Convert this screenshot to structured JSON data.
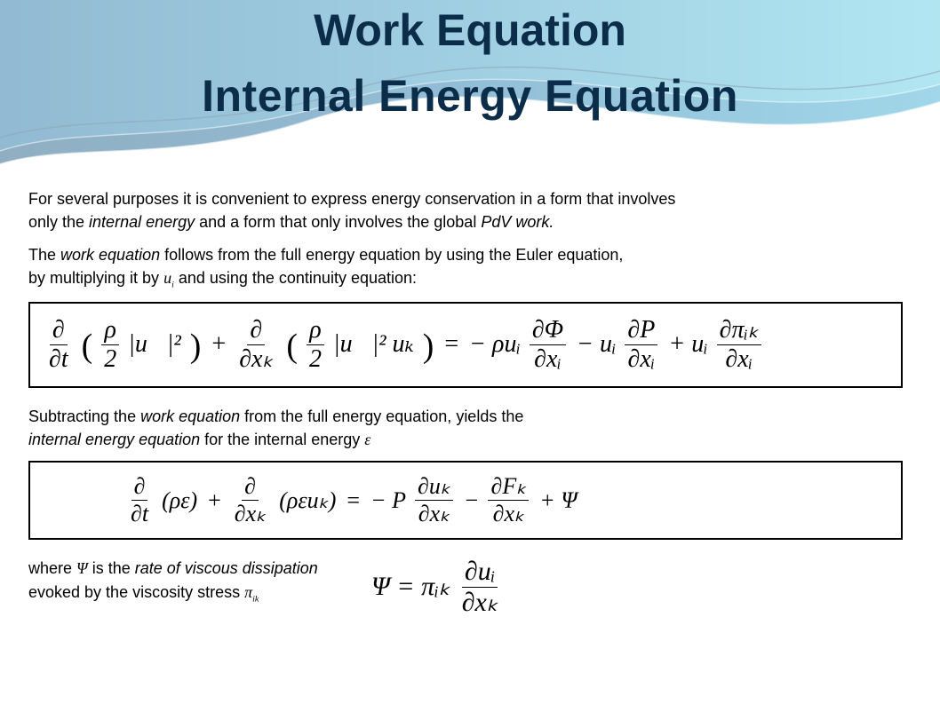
{
  "banner": {
    "title1": "Work Equation",
    "title2": "Internal Energy  Equation",
    "colors": {
      "title_color": "#0b2d4a",
      "wave_dark": "#0a4d77",
      "wave_mid": "#0f6ea6",
      "wave_light": "#2fa6cf",
      "wave_bright": "#5bd0e5",
      "wave_stroke": "#0c3b5c"
    },
    "title_fontsize": 50
  },
  "body": {
    "p1a": "For  several  purposes it is convenient to express energy conservation in a form that involves",
    "p1b_pre": "only the ",
    "p1b_em1": "internal energy",
    "p1b_mid": " and a form that only involves the global ",
    "p1b_em2": "PdV work.",
    "p2a_pre": "The ",
    "p2a_em": "work equation",
    "p2a_post": " follows from the full energy equation by using the Euler equation,",
    "p2b_pre": "by multiplying it by ",
    "p2b_sym": "u",
    "p2b_sub": "i",
    "p2b_post": " and using the continuity equation:",
    "p3a_pre": "Subtracting the ",
    "p3a_em": "work equation",
    "p3a_post": " from the full energy equation, yields the",
    "p3b_em": "internal energy equation",
    "p3b_post": "  for the internal energy ",
    "p3b_sym": "ε",
    "p4a_pre": "where ",
    "p4a_sym": "Ψ",
    "p4a_mid": " is the ",
    "p4a_em": "rate of viscous dissipation",
    "p4b_pre": "evoked by the viscosity stress  ",
    "p4b_sym": "π",
    "p4b_sub": "ik",
    "fontsize": 18
  },
  "eq1": {
    "t1_num": "∂",
    "t1_den": "∂t",
    "t1_inner_num": "ρ",
    "t1_inner_den": "2",
    "t1_inner_tail": "|u&#8407;|²",
    "plus": "+",
    "t2_num": "∂",
    "t2_den": "∂xₖ",
    "t2_inner_num": "ρ",
    "t2_inner_den": "2",
    "t2_inner_tail": "|u&#8407;|² uₖ",
    "eq": "=",
    "r1_pre": "− ρuᵢ",
    "r1_num": "∂Φ",
    "r1_den": "∂xᵢ",
    "r2_pre": "− uᵢ",
    "r2_num": "∂P",
    "r2_den": "∂xᵢ",
    "r3_pre": "+ uᵢ",
    "r3_num": "∂πᵢₖ",
    "r3_den": "∂xᵢ"
  },
  "eq2": {
    "t1_num": "∂",
    "t1_den": "∂t",
    "t1_par": "(ρε)",
    "t2_num": "∂",
    "t2_den": "∂xₖ",
    "t2_par": "(ρεuₖ)",
    "r1_pre": "− P",
    "r1_num": "∂uₖ",
    "r1_den": "∂xₖ",
    "r2_pre": "−",
    "r2_num": "∂Fₖ",
    "r2_den": "∂xₖ",
    "r3": "+ Ψ"
  },
  "eq3": {
    "lhs": "Ψ  =  πᵢₖ",
    "num": "∂uᵢ",
    "den": "∂xₖ"
  }
}
